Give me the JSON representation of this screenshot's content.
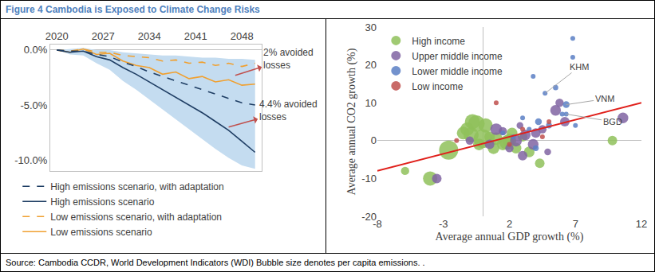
{
  "title": "Figure 4 Cambodia is Exposed to Climate Change Risks",
  "source": "Source: Cambodia CCDR, World Development Indicators (WDI) Bubble size denotes per capita emissions. .",
  "chart_data": [
    {
      "type": "line",
      "x": [
        2020,
        2022,
        2024,
        2026,
        2028,
        2030,
        2032,
        2034,
        2036,
        2038,
        2040,
        2042,
        2044,
        2046,
        2048,
        2050
      ],
      "series": [
        {
          "name": "Low emissions scenario",
          "color": "#f0a030",
          "line_style": "solid",
          "values": [
            0,
            -0.2,
            0.1,
            -0.4,
            -0.3,
            -1.0,
            -1.4,
            -1.6,
            -2.2,
            -2.0,
            -2.6,
            -2.4,
            -2.9,
            -2.7,
            -3.2,
            -3.1
          ]
        },
        {
          "name": "Low emissions scenario, with adaptation",
          "color": "#f0a030",
          "line_style": "dash",
          "values": [
            0,
            -0.1,
            0.1,
            -0.2,
            -0.2,
            -0.5,
            -0.6,
            -0.7,
            -1.0,
            -0.9,
            -1.2,
            -1.1,
            -1.4,
            -1.2,
            -1.5,
            -1.2
          ]
        },
        {
          "name": "High emissions scenario",
          "color": "#1f3e64",
          "line_style": "solid",
          "values": [
            0,
            -0.2,
            -0.1,
            -0.6,
            -0.9,
            -1.6,
            -2.2,
            -2.9,
            -3.6,
            -4.3,
            -5.0,
            -5.7,
            -6.5,
            -7.3,
            -8.3,
            -9.3
          ]
        },
        {
          "name": "High emissions scenario, with adaptation",
          "color": "#1f3e64",
          "line_style": "dash",
          "values": [
            0,
            -0.1,
            -0.1,
            -0.4,
            -0.6,
            -1.1,
            -1.5,
            -2.0,
            -2.4,
            -2.8,
            -3.2,
            -3.6,
            -4.0,
            -4.4,
            -4.8,
            -5.0
          ]
        }
      ],
      "band": {
        "color": "#c4dcf0",
        "upper": [
          0,
          0.1,
          0.2,
          0,
          0,
          -0.2,
          -0.3,
          -0.4,
          -0.5,
          -0.5,
          -0.6,
          -0.7,
          -0.7,
          -0.8,
          -0.8,
          -0.9
        ],
        "lower": [
          0,
          -0.4,
          -0.5,
          -1.2,
          -1.8,
          -2.8,
          -3.6,
          -4.5,
          -5.4,
          -6.3,
          -7.2,
          -8.1,
          -9.0,
          -9.8,
          -10.5,
          -10.8
        ]
      },
      "annotations": [
        {
          "lines": [
            "2% avoided",
            "losses"
          ],
          "x": 2047,
          "y": -2.3,
          "text_x": 2055,
          "text_y": -0.8,
          "color": "#c0504d"
        },
        {
          "lines": [
            "4.4% avoided",
            "losses"
          ],
          "x": 2046,
          "y": -7.0,
          "text_x": 2055,
          "text_y": -5.5,
          "color": "#c0504d"
        }
      ],
      "xlim": [
        2019,
        2051
      ],
      "xticks": [
        2020,
        2027,
        2034,
        2041,
        2048
      ],
      "ylim": [
        -11,
        0.5
      ],
      "yticks": [
        {
          "value": 0,
          "label": "0.0%"
        },
        {
          "value": -5,
          "label": "-5.0%"
        },
        {
          "value": -10,
          "label": "-10.0%"
        }
      ],
      "grid": false,
      "legend": "bottom left"
    },
    {
      "type": "scatter",
      "x_label": "Average annual GDP growth (%)",
      "y_label": "Average annual CO2 growth (%)",
      "series": [
        {
          "name": "High income",
          "color": "#8fc15b",
          "marker": "circle",
          "x": [
            -1.2,
            -0.8,
            -0.5,
            0.2,
            -1.5,
            -2.6,
            -4.0,
            -0.3,
            0.5,
            1.0,
            1.5,
            2.0,
            2.5,
            3.0,
            3.5,
            4.3,
            -0.9,
            0.8,
            2.2,
            9.8,
            -5.9,
            1.8,
            0.0
          ],
          "y": [
            3,
            5,
            4.5,
            4,
            2,
            -2.5,
            -10,
            -1,
            1,
            0.5,
            -1,
            0,
            -2,
            1,
            -3,
            -6,
            1.5,
            -2,
            2,
            0,
            -8,
            -0.5,
            0.5
          ],
          "size": [
            8,
            10,
            12,
            9,
            7,
            16,
            9,
            6,
            5,
            7,
            6,
            8,
            5,
            4,
            5,
            4,
            10,
            6,
            5,
            4,
            3,
            9,
            15
          ]
        },
        {
          "name": "Upper middle income",
          "color": "#8064a2",
          "marker": "circle",
          "x": [
            2.5,
            3.2,
            4.0,
            1.5,
            0.5,
            -1.0,
            3.8,
            5.5,
            6.2,
            4.5,
            2.8,
            10.6,
            -3.5,
            3.0,
            4.9,
            5.8,
            1.0,
            2.0
          ],
          "y": [
            0,
            1.5,
            2,
            2.5,
            -1,
            0,
            -1,
            8,
            5,
            3,
            4,
            6,
            -10,
            -4,
            -3,
            10,
            3,
            -2
          ],
          "size": [
            6,
            5,
            4,
            3,
            4,
            3,
            5,
            5,
            4,
            3,
            2,
            5,
            4,
            4,
            2,
            3,
            6,
            3
          ]
        },
        {
          "name": "Lower middle income",
          "color": "#5a7fc4",
          "marker": "circle",
          "x": [
            5.0,
            4.2,
            3.5,
            6.0,
            5.5,
            6.8,
            4.7,
            6.3,
            6.3,
            3.0,
            2.3,
            7.0,
            4.0,
            1.5,
            3.8,
            6.8
          ],
          "y": [
            4,
            5,
            3,
            7,
            14,
            22,
            12.5,
            9.5,
            7,
            6,
            1,
            4,
            -2,
            2,
            17,
            27
          ],
          "size": [
            1.5,
            2,
            1,
            1,
            1.2,
            1,
            1,
            2,
            1,
            0.8,
            1,
            1,
            1.5,
            1,
            0.6,
            0.4
          ]
        },
        {
          "name": "Low income",
          "color": "#c0504d",
          "marker": "circle",
          "x": [
            2,
            3,
            4.5,
            -2,
            5,
            1
          ],
          "y": [
            -1,
            3,
            1,
            0,
            5,
            10
          ],
          "size": [
            0.2,
            0.1,
            0.2,
            0.2,
            0.1,
            0.1
          ]
        }
      ],
      "fit": {
        "color": "#e0201b",
        "x": [
          -8,
          12
        ],
        "y": [
          -8,
          10
        ]
      },
      "annotations": [
        {
          "text": "KHM",
          "x": 4.7,
          "y": 12.5,
          "text_x": 7.3,
          "text_y": 19.5
        },
        {
          "text": "VNM",
          "x": 6.3,
          "y": 9.5,
          "text_x": 9.2,
          "text_y": 11
        },
        {
          "text": "BGD",
          "x": 6.3,
          "y": 7,
          "text_x": 9.8,
          "text_y": 5
        }
      ],
      "xlim": [
        -8,
        12
      ],
      "xticks": [
        -8,
        -3,
        2,
        7,
        12
      ],
      "ylim": [
        -20,
        30
      ],
      "yticks": [
        -20,
        -10,
        0,
        10,
        20,
        30
      ],
      "grid": false,
      "legend": "top left"
    }
  ]
}
